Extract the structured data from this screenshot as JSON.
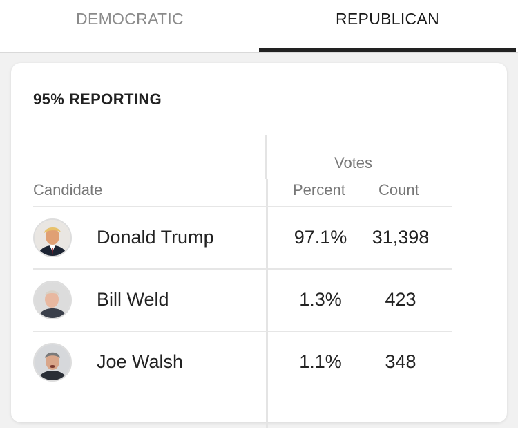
{
  "tabs": {
    "democratic": "DEMOCRATIC",
    "republican": "REPUBLICAN",
    "active": "republican"
  },
  "results": {
    "reporting": "95% REPORTING",
    "headers": {
      "votes": "Votes",
      "candidate": "Candidate",
      "percent": "Percent",
      "count": "Count"
    },
    "candidates": [
      {
        "name": "Donald Trump",
        "percent": "97.1%",
        "count": "31,398"
      },
      {
        "name": "Bill Weld",
        "percent": "1.3%",
        "count": "423"
      },
      {
        "name": "Joe Walsh",
        "percent": "1.1%",
        "count": "348"
      }
    ]
  }
}
